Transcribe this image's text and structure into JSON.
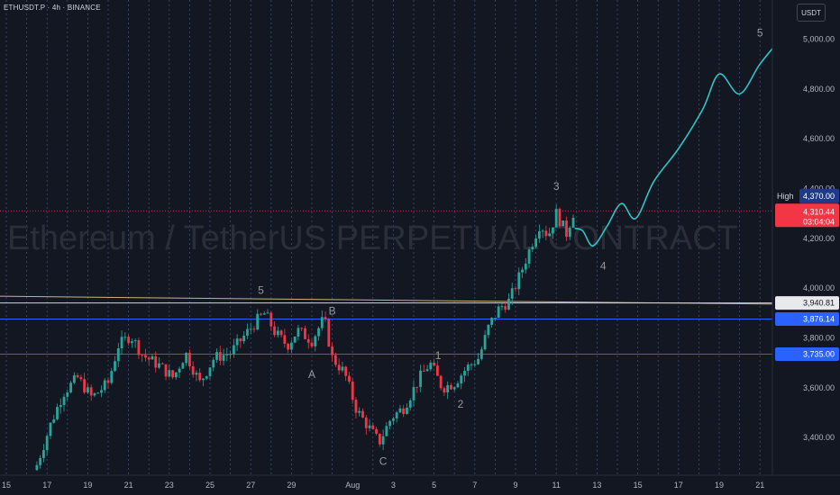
{
  "header": {
    "symbol": "ETHUSDT.P · 4h · BINANCE",
    "currency": "USDT"
  },
  "watermark": "Ethereum / TetherUS PERPETUAL CONTRACT",
  "colors": {
    "bg": "#131722",
    "up": "#26a69a",
    "down": "#f23645",
    "projection": "#2ec4c4",
    "hline": "#2962ff",
    "trendline": "#c9b57a"
  },
  "chart_data": {
    "type": "candlestick",
    "ylim": [
      3300,
      5080
    ],
    "y_ticks": [
      {
        "value": 5000,
        "label": "5,000.00"
      },
      {
        "value": 4800,
        "label": "4,800.00"
      },
      {
        "value": 4600,
        "label": "4,600.00"
      },
      {
        "value": 4400,
        "label": "4,400.00"
      },
      {
        "value": 4200,
        "label": "4,200.00"
      },
      {
        "value": 4000,
        "label": "4,000.00"
      },
      {
        "value": 3800,
        "label": "3,800.00"
      },
      {
        "value": 3600,
        "label": "3,600.00"
      },
      {
        "value": 3400,
        "label": "3,400.00"
      }
    ],
    "x_ticks": [
      "15",
      "17",
      "19",
      "21",
      "23",
      "25",
      "27",
      "29",
      "Aug",
      "3",
      "5",
      "7",
      "9",
      "11",
      "13",
      "15",
      "17",
      "19",
      "21"
    ],
    "x_tick_days": [
      0,
      2,
      4,
      6,
      8,
      10,
      12,
      14,
      17,
      19,
      21,
      23,
      25,
      27,
      29,
      31,
      33,
      35,
      37
    ],
    "candle_anchors": [
      {
        "d": 1.5,
        "p": 3290
      },
      {
        "d": 2.2,
        "p": 3460
      },
      {
        "d": 2.8,
        "p": 3580
      },
      {
        "d": 3.5,
        "p": 3640
      },
      {
        "d": 4.2,
        "p": 3560
      },
      {
        "d": 5.0,
        "p": 3620
      },
      {
        "d": 5.5,
        "p": 3770
      },
      {
        "d": 6.1,
        "p": 3810
      },
      {
        "d": 6.7,
        "p": 3730
      },
      {
        "d": 7.5,
        "p": 3690
      },
      {
        "d": 8.2,
        "p": 3640
      },
      {
        "d": 8.8,
        "p": 3740
      },
      {
        "d": 9.5,
        "p": 3620
      },
      {
        "d": 10.2,
        "p": 3720
      },
      {
        "d": 11.0,
        "p": 3740
      },
      {
        "d": 11.6,
        "p": 3800
      },
      {
        "d": 12.3,
        "p": 3870
      },
      {
        "d": 12.7,
        "p": 3900
      },
      {
        "d": 13.2,
        "p": 3820
      },
      {
        "d": 13.8,
        "p": 3770
      },
      {
        "d": 14.3,
        "p": 3830
      },
      {
        "d": 15.0,
        "p": 3790
      },
      {
        "d": 15.6,
        "p": 3880
      },
      {
        "d": 16.0,
        "p": 3720
      },
      {
        "d": 16.6,
        "p": 3660
      },
      {
        "d": 17.2,
        "p": 3510
      },
      {
        "d": 17.8,
        "p": 3440
      },
      {
        "d": 18.3,
        "p": 3380
      },
      {
        "d": 18.9,
        "p": 3480
      },
      {
        "d": 19.5,
        "p": 3520
      },
      {
        "d": 20.3,
        "p": 3640
      },
      {
        "d": 20.8,
        "p": 3700
      },
      {
        "d": 21.4,
        "p": 3600
      },
      {
        "d": 22.0,
        "p": 3620
      },
      {
        "d": 22.6,
        "p": 3680
      },
      {
        "d": 23.2,
        "p": 3720
      },
      {
        "d": 23.7,
        "p": 3850
      },
      {
        "d": 24.2,
        "p": 3920
      },
      {
        "d": 24.7,
        "p": 3950
      },
      {
        "d": 25.2,
        "p": 4050
      },
      {
        "d": 25.8,
        "p": 4180
      },
      {
        "d": 26.2,
        "p": 4260
      },
      {
        "d": 26.6,
        "p": 4210
      },
      {
        "d": 27.0,
        "p": 4300
      },
      {
        "d": 27.5,
        "p": 4220
      },
      {
        "d": 27.9,
        "p": 4320
      }
    ],
    "projection": [
      {
        "d": 27.9,
        "p": 4240
      },
      {
        "d": 28.3,
        "p": 4230
      },
      {
        "d": 28.8,
        "p": 4170
      },
      {
        "d": 29.5,
        "p": 4250
      },
      {
        "d": 30.2,
        "p": 4340
      },
      {
        "d": 30.9,
        "p": 4280
      },
      {
        "d": 31.8,
        "p": 4430
      },
      {
        "d": 33.0,
        "p": 4560
      },
      {
        "d": 34.2,
        "p": 4720
      },
      {
        "d": 35.0,
        "p": 4860
      },
      {
        "d": 36.0,
        "p": 4780
      },
      {
        "d": 37.0,
        "p": 4900
      },
      {
        "d": 38.0,
        "p": 5000
      }
    ],
    "horizontal_lines": [
      {
        "value": 3940.81,
        "label": "3,940.81",
        "style": "white"
      },
      {
        "value": 3876.14,
        "label": "3,876.14",
        "style": "blue"
      },
      {
        "value": 3735.0,
        "label": "3,735.00",
        "style": "blue"
      }
    ],
    "trendline": {
      "from": {
        "d": -0.8,
        "p": 3968
      },
      "to": {
        "d": 38.9,
        "p": 3935
      }
    },
    "last_price": {
      "value": 4310.44,
      "label": "4,310.44",
      "countdown": "03:04:04"
    },
    "high": {
      "value": 4370,
      "title": "High",
      "label": "4,370.00"
    },
    "wave_labels": [
      {
        "text": "5",
        "d": 12.5,
        "p": 3978
      },
      {
        "text": "B",
        "d": 16.0,
        "p": 3895
      },
      {
        "text": "A",
        "d": 15.0,
        "p": 3640
      },
      {
        "text": "C",
        "d": 18.5,
        "p": 3290
      },
      {
        "text": "1",
        "d": 21.2,
        "p": 3715
      },
      {
        "text": "2",
        "d": 22.3,
        "p": 3520
      },
      {
        "text": "3",
        "d": 27.0,
        "p": 4395
      },
      {
        "text": "4",
        "d": 29.3,
        "p": 4075
      },
      {
        "text": "5",
        "d": 37.0,
        "p": 5010
      }
    ]
  }
}
